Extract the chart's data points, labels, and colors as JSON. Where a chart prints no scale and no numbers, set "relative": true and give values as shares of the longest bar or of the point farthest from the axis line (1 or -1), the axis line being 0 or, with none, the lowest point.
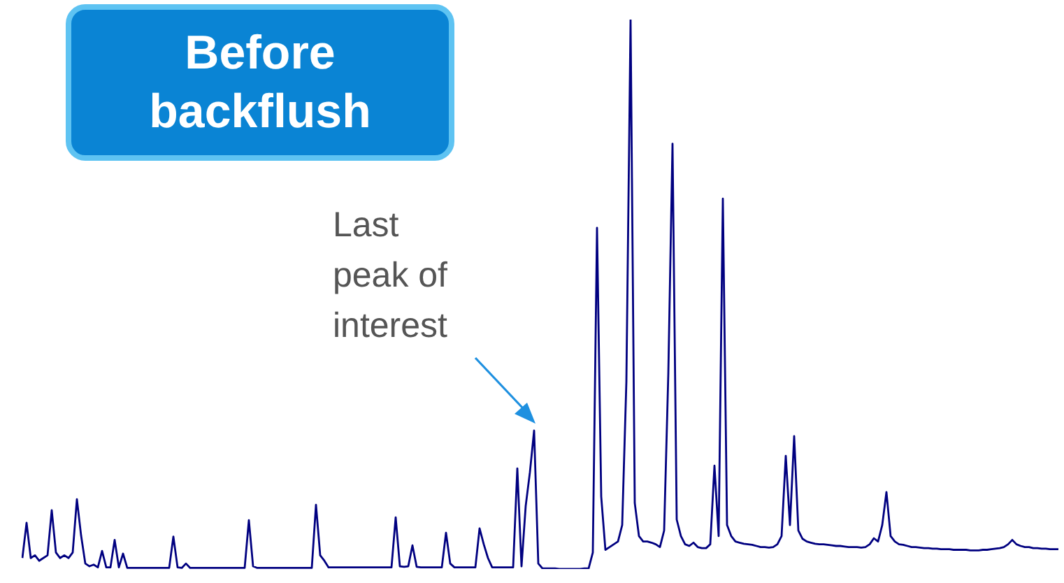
{
  "chart_data": {
    "type": "line",
    "title": "Before backflush",
    "relative": true,
    "legend": false,
    "marker": "none",
    "annotations": [
      "Last peak of interest"
    ],
    "categories": [
      null,
      null,
      null,
      null,
      null,
      null,
      null,
      null,
      null,
      null,
      null,
      null,
      null,
      null,
      null,
      null,
      null,
      null,
      null,
      null,
      null,
      null,
      null,
      null,
      null,
      null,
      null,
      null,
      null,
      null,
      null,
      null,
      null,
      null,
      null,
      null,
      null,
      null,
      null,
      null,
      null,
      null,
      null,
      null,
      null,
      null,
      null,
      null,
      null,
      null,
      null,
      null,
      null,
      null,
      null,
      null,
      null,
      null,
      null,
      null,
      null,
      null,
      null,
      null,
      null,
      null,
      null,
      null,
      null,
      null,
      null,
      null,
      null,
      null,
      null,
      null,
      null,
      null,
      null,
      null,
      null,
      null,
      null,
      null,
      null,
      null,
      null,
      null,
      null,
      null,
      null,
      null,
      null,
      null,
      null,
      null,
      null,
      null,
      null,
      null,
      null,
      null,
      null,
      null,
      null,
      null,
      null,
      null,
      null,
      null,
      null,
      null,
      null,
      null,
      null,
      null,
      null,
      null,
      null,
      null,
      null,
      null,
      null,
      null,
      null,
      null,
      null,
      null,
      null,
      null,
      null,
      null,
      null,
      null,
      null,
      null,
      null,
      null,
      null,
      null,
      null,
      null,
      null,
      null,
      null,
      null,
      null,
      null,
      null,
      null,
      null,
      null,
      null,
      null,
      null,
      null,
      null,
      null,
      null,
      null,
      null,
      null,
      null,
      null,
      null,
      null,
      null,
      null,
      null,
      null,
      null,
      null,
      null,
      null,
      null,
      null,
      null,
      null,
      null,
      null,
      null,
      null,
      null,
      null,
      null,
      null,
      null,
      null,
      null,
      null,
      null,
      null,
      null,
      null,
      null,
      null,
      null,
      null,
      null,
      null,
      null,
      null,
      null,
      null,
      null,
      null,
      null,
      null,
      null,
      null,
      null,
      null,
      null,
      null,
      null,
      null,
      null,
      null,
      null,
      null,
      null,
      null,
      null,
      null,
      null,
      null,
      null,
      null,
      null,
      null,
      null,
      null,
      null,
      null,
      null,
      null,
      null,
      null,
      null,
      null,
      null,
      null,
      null,
      null,
      null,
      null,
      null,
      null
    ],
    "series": [
      {
        "color": "#000080",
        "values": [
          0.02,
          0.084,
          0.02,
          0.025,
          0.015,
          0.02,
          0.025,
          0.107,
          0.03,
          0.02,
          0.025,
          0.02,
          0.03,
          0.127,
          0.061,
          0.01,
          0.005,
          0.008,
          0.003,
          0.033,
          0.003,
          0.003,
          0.053,
          0.003,
          0.028,
          0.002,
          0.002,
          0.002,
          0.002,
          0.002,
          0.002,
          0.002,
          0.002,
          0.002,
          0.002,
          0.002,
          0.059,
          0.003,
          0.002,
          0.01,
          0.002,
          0.002,
          0.002,
          0.002,
          0.002,
          0.002,
          0.002,
          0.002,
          0.002,
          0.002,
          0.002,
          0.002,
          0.002,
          0.002,
          0.089,
          0.005,
          0.002,
          0.002,
          0.002,
          0.002,
          0.002,
          0.002,
          0.002,
          0.002,
          0.002,
          0.002,
          0.002,
          0.002,
          0.002,
          0.002,
          0.117,
          0.025,
          0.015,
          0.003,
          0.003,
          0.003,
          0.003,
          0.003,
          0.003,
          0.003,
          0.003,
          0.003,
          0.003,
          0.003,
          0.003,
          0.003,
          0.003,
          0.003,
          0.003,
          0.094,
          0.005,
          0.004,
          0.005,
          0.043,
          0.004,
          0.003,
          0.003,
          0.003,
          0.003,
          0.003,
          0.003,
          0.066,
          0.01,
          0.003,
          0.003,
          0.003,
          0.003,
          0.003,
          0.003,
          0.074,
          0.045,
          0.02,
          0.003,
          0.003,
          0.003,
          0.003,
          0.003,
          0.003,
          0.183,
          0.005,
          0.115,
          0.176,
          0.252,
          0.01,
          0.001,
          0.001,
          0.001,
          0.001,
          0,
          0,
          0,
          0,
          0,
          0,
          0.001,
          0.001,
          0.03,
          0.621,
          0.132,
          0.035,
          0.04,
          0.045,
          0.05,
          0.08,
          0.341,
          1,
          0.12,
          0.06,
          0.05,
          0.05,
          0.048,
          0.045,
          0.04,
          0.07,
          0.356,
          0.774,
          0.09,
          0.06,
          0.045,
          0.042,
          0.048,
          0.04,
          0.038,
          0.038,
          0.045,
          0.188,
          0.06,
          0.674,
          0.08,
          0.06,
          0.05,
          0.048,
          0.046,
          0.045,
          0.044,
          0.042,
          0.04,
          0.04,
          0.039,
          0.04,
          0.045,
          0.06,
          0.206,
          0.08,
          0.242,
          0.07,
          0.055,
          0.05,
          0.048,
          0.046,
          0.045,
          0.045,
          0.044,
          0.043,
          0.042,
          0.042,
          0.041,
          0.04,
          0.04,
          0.04,
          0.039,
          0.04,
          0.045,
          0.056,
          0.05,
          0.08,
          0.14,
          0.06,
          0.05,
          0.045,
          0.044,
          0.042,
          0.04,
          0.04,
          0.039,
          0.038,
          0.038,
          0.037,
          0.037,
          0.036,
          0.036,
          0.036,
          0.035,
          0.035,
          0.035,
          0.035,
          0.034,
          0.034,
          0.034,
          0.035,
          0.035,
          0.036,
          0.037,
          0.038,
          0.04,
          0.045,
          0.053,
          0.045,
          0.042,
          0.04,
          0.04,
          0.038,
          0.038,
          0.037,
          0.037,
          0.036,
          0.036,
          0.036
        ]
      }
    ]
  }
}
